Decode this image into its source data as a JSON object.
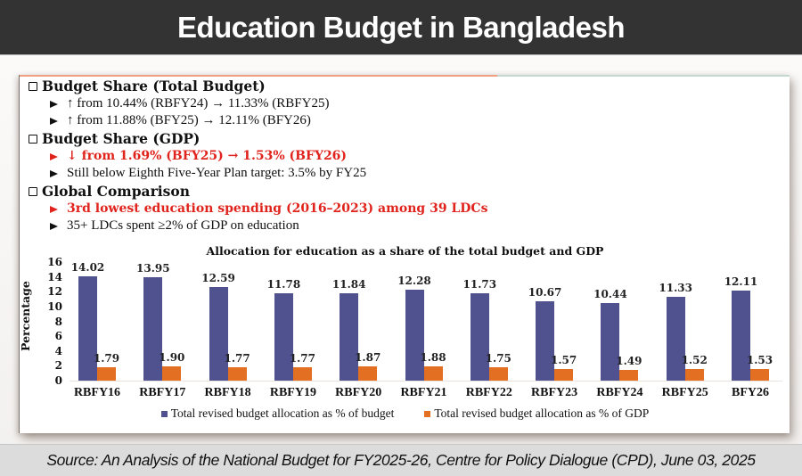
{
  "header": {
    "title": "Education Budget in Bangladesh"
  },
  "bullets": {
    "sections": [
      {
        "heading": "Budget Share (Total Budget)",
        "items": [
          {
            "text": "↑ from 10.44% (RBFY24) → 11.33% (RBFY25)",
            "highlight": false
          },
          {
            "text": "↑ from 11.88% (BFY25) → 12.11% (BFY26)",
            "highlight": false
          }
        ]
      },
      {
        "heading": "Budget Share (GDP)",
        "items": [
          {
            "text": "↓ from 1.69% (BFY25) → 1.53% (BFY26)",
            "highlight": true
          },
          {
            "text": "Still below Eighth Five-Year Plan target: 3.5% by FY25",
            "highlight": false
          }
        ]
      },
      {
        "heading": "Global Comparison",
        "items": [
          {
            "text": "3rd lowest education spending (2016–2023) among 39 LDCs",
            "highlight": true
          },
          {
            "text": "35+ LDCs spent ≥2% of GDP on education",
            "highlight": false
          }
        ]
      }
    ]
  },
  "colors": {
    "header_bg": "#333333",
    "series_budget": "#4f528f",
    "series_gdp": "#e36f22",
    "highlight_text": "#e0231c",
    "footer_bg": "#dcdcdc"
  },
  "chart_data": {
    "type": "bar",
    "title": "Allocation for education as a share of the total budget and GDP",
    "xlabel": "",
    "ylabel": "Percentage",
    "ylim": [
      0,
      16
    ],
    "yticks": [
      "0",
      "2",
      "4",
      "6",
      "8",
      "10",
      "12",
      "14",
      "16"
    ],
    "grid": false,
    "legend_position": "bottom",
    "categories": [
      "RBFY16",
      "RBFY17",
      "RBFY18",
      "RBFY19",
      "RBFY20",
      "RBFY21",
      "RBFY22",
      "RBFY23",
      "RBFY24",
      "RBFY25",
      "BFY26"
    ],
    "series": [
      {
        "name": "Total revised budget allocation as % of budget",
        "color": "#4f528f",
        "values": [
          14.02,
          13.95,
          12.59,
          11.78,
          11.84,
          12.28,
          11.73,
          10.67,
          10.44,
          11.33,
          12.11
        ],
        "labels": [
          "14.02",
          "13.95",
          "12.59",
          "11.78",
          "11.84",
          "12.28",
          "11.73",
          "10.67",
          "10.44",
          "11.33",
          "12.11"
        ]
      },
      {
        "name": "Total revised budget allocation as % of GDP",
        "color": "#e36f22",
        "values": [
          1.79,
          1.9,
          1.77,
          1.77,
          1.87,
          1.88,
          1.75,
          1.57,
          1.49,
          1.52,
          1.53
        ],
        "labels": [
          "1.79",
          "1.90",
          "1.77",
          "1.77",
          "1.87",
          "1.88",
          "1.75",
          "1.57",
          "1.49",
          "1.52",
          "1.53"
        ]
      }
    ]
  },
  "footer": {
    "source": "Source: An Analysis of the National Budget for FY2025-26, Centre for Policy Dialogue (CPD), June 03, 2025"
  }
}
